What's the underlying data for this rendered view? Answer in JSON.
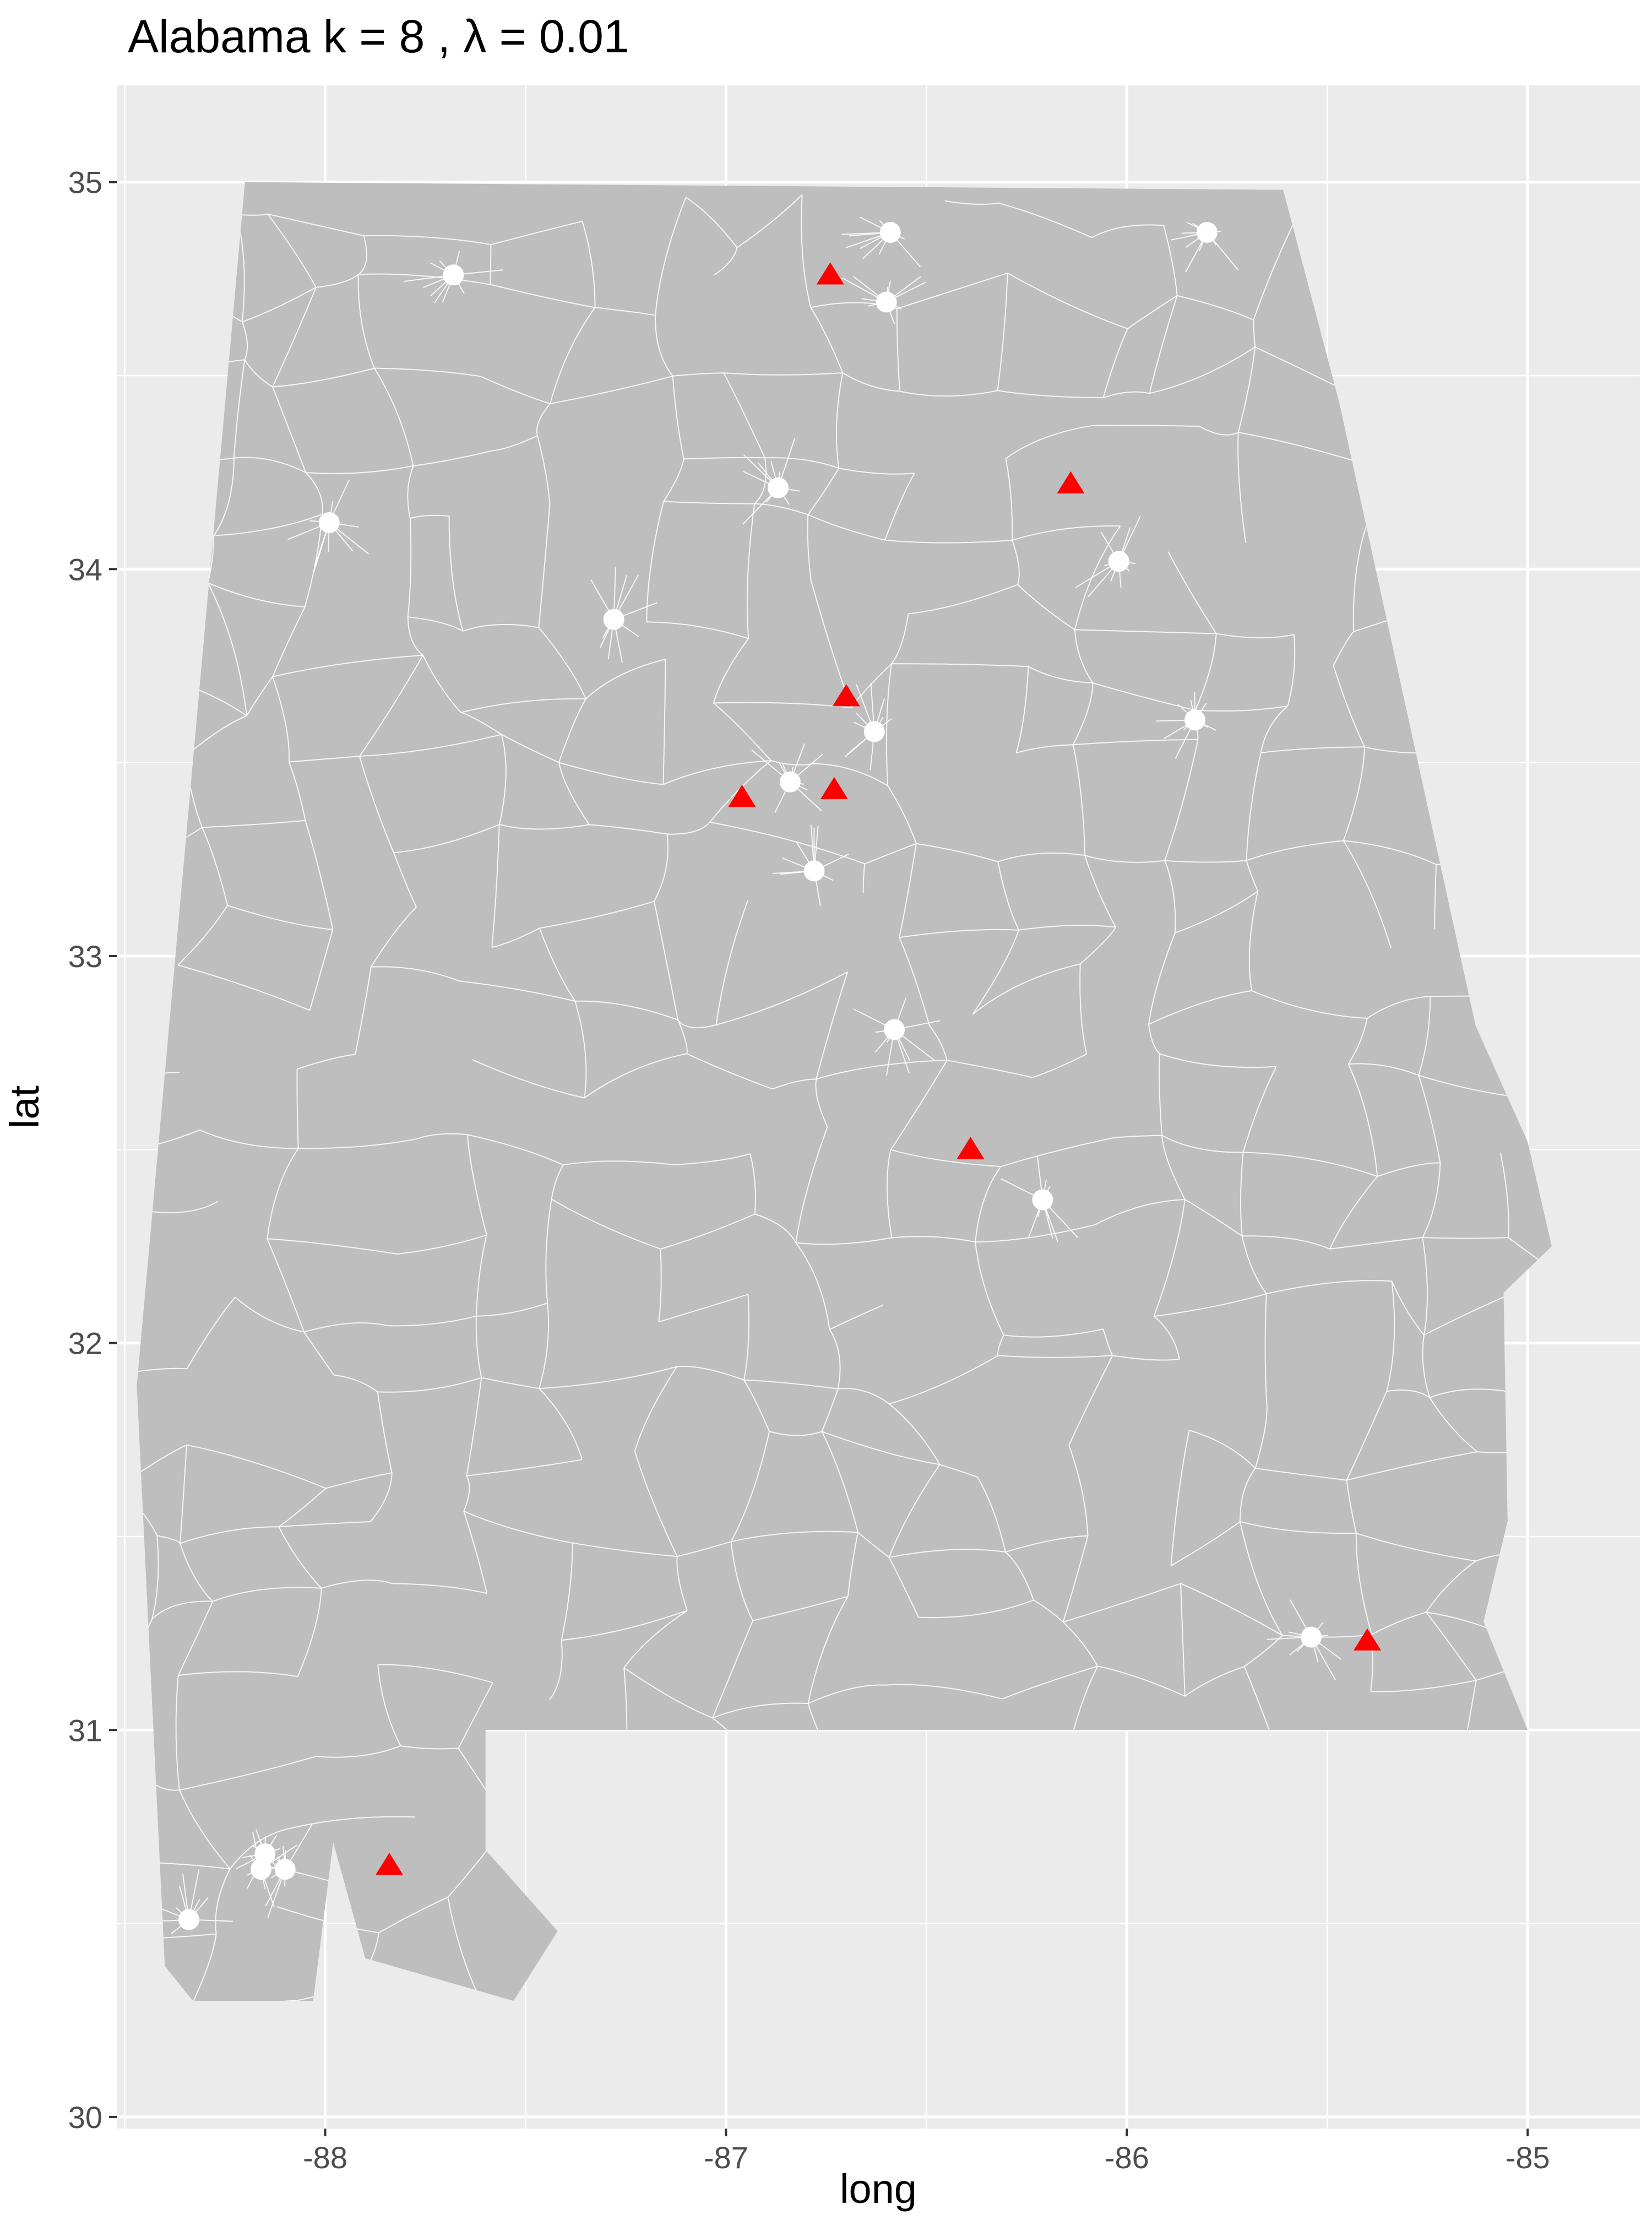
{
  "chart_data": {
    "type": "scatter",
    "title": "Alabama  k =  8 ,  λ  =  0.01",
    "xlabel": "long",
    "ylabel": "lat",
    "xlim": [
      -88.52,
      -84.72
    ],
    "ylim": [
      29.97,
      35.25
    ],
    "x_ticks": [
      -88,
      -87,
      -86,
      -85
    ],
    "x_tick_labels": [
      "-88",
      "-87",
      "-86",
      "-85"
    ],
    "y_ticks": [
      30,
      31,
      32,
      33,
      34,
      35
    ],
    "y_tick_labels": [
      "30",
      "31",
      "32",
      "33",
      "34",
      "35"
    ],
    "grid": true,
    "legend": "none",
    "colors": {
      "panel_background": "#ebebeb",
      "state_fill": "#bebebe",
      "tract_borders": "#ffffff",
      "grid": "#ffffff",
      "circle_points": "#ffffff",
      "triangle_points": "#ff0000"
    },
    "series": [
      {
        "marker": "circle",
        "color": "#ffffff",
        "points": [
          {
            "long": -87.68,
            "lat": 34.76
          },
          {
            "long": -86.59,
            "lat": 34.87
          },
          {
            "long": -86.6,
            "lat": 34.69
          },
          {
            "long": -85.8,
            "lat": 34.87
          },
          {
            "long": -87.99,
            "lat": 34.12
          },
          {
            "long": -86.87,
            "lat": 34.21
          },
          {
            "long": -86.02,
            "lat": 34.02
          },
          {
            "long": -87.28,
            "lat": 33.87
          },
          {
            "long": -86.63,
            "lat": 33.58
          },
          {
            "long": -85.83,
            "lat": 33.61
          },
          {
            "long": -86.84,
            "lat": 33.45
          },
          {
            "long": -86.78,
            "lat": 33.22
          },
          {
            "long": -86.58,
            "lat": 32.81
          },
          {
            "long": -86.21,
            "lat": 32.37
          },
          {
            "long": -85.54,
            "lat": 31.24
          },
          {
            "long": -88.15,
            "lat": 30.68
          },
          {
            "long": -88.16,
            "lat": 30.64
          },
          {
            "long": -88.1,
            "lat": 30.64
          },
          {
            "long": -88.34,
            "lat": 30.51
          }
        ]
      },
      {
        "marker": "triangle",
        "color": "#ff0000",
        "points": [
          {
            "long": -86.74,
            "lat": 34.76
          },
          {
            "long": -86.14,
            "lat": 34.22
          },
          {
            "long": -86.7,
            "lat": 33.67
          },
          {
            "long": -86.96,
            "lat": 33.41
          },
          {
            "long": -86.73,
            "lat": 33.43
          },
          {
            "long": -86.39,
            "lat": 32.5
          },
          {
            "long": -85.4,
            "lat": 31.23
          },
          {
            "long": -87.84,
            "lat": 30.65
          }
        ]
      }
    ],
    "state_outline": [
      [
        -88.2,
        35.0
      ],
      [
        -85.61,
        34.98
      ],
      [
        -85.47,
        34.43
      ],
      [
        -85.13,
        32.82
      ],
      [
        -85.0,
        32.52
      ],
      [
        -84.94,
        32.25
      ],
      [
        -85.06,
        32.13
      ],
      [
        -85.05,
        31.54
      ],
      [
        -85.11,
        31.28
      ],
      [
        -85.0,
        31.0
      ],
      [
        -87.6,
        31.0
      ],
      [
        -87.6,
        30.69
      ],
      [
        -87.42,
        30.48
      ],
      [
        -87.53,
        30.3
      ],
      [
        -87.9,
        30.41
      ],
      [
        -87.98,
        30.71
      ],
      [
        -88.03,
        30.3
      ],
      [
        -88.33,
        30.3
      ],
      [
        -88.4,
        30.39
      ],
      [
        -88.47,
        31.89
      ],
      [
        -88.2,
        35.0
      ]
    ]
  }
}
